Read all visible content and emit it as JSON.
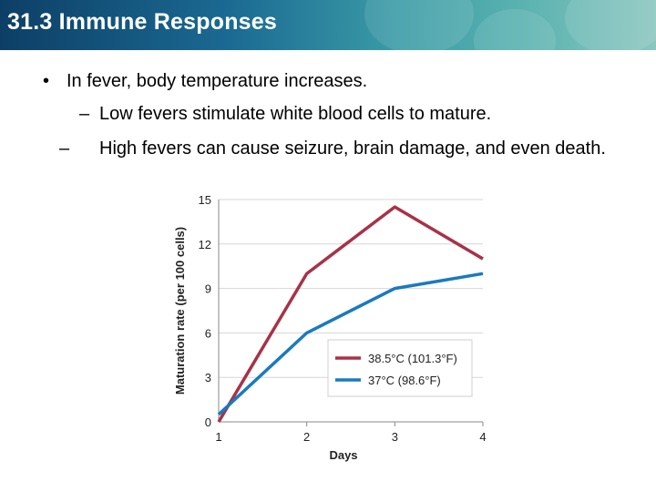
{
  "slide": {
    "title": "31.3 Immune Responses",
    "bullet_main": "In fever, body temperature increases.",
    "sub_bullets": [
      "Low fevers stimulate white blood cells to mature.",
      "High fevers can cause seizure, brain damage, and even death."
    ]
  },
  "chart_data": {
    "type": "line",
    "xlabel": "Days",
    "ylabel": "Maturation rate (per 100 cells)",
    "x": [
      1,
      2,
      3,
      4
    ],
    "x_ticks": [
      "1",
      "2",
      "3",
      "4"
    ],
    "y_ticks": [
      "0",
      "3",
      "6",
      "9",
      "12",
      "15"
    ],
    "ylim": [
      0,
      15
    ],
    "xlim": [
      1,
      4
    ],
    "grid": "horizontal",
    "legend_position": "bottom-right",
    "series": [
      {
        "name": "38.5°C (101.3°F)",
        "color": "#a83248",
        "values": [
          0,
          10,
          14.5,
          11
        ]
      },
      {
        "name": "37°C (98.6°F)",
        "color": "#1a7abf",
        "values": [
          0.5,
          6,
          9,
          10
        ]
      }
    ]
  }
}
